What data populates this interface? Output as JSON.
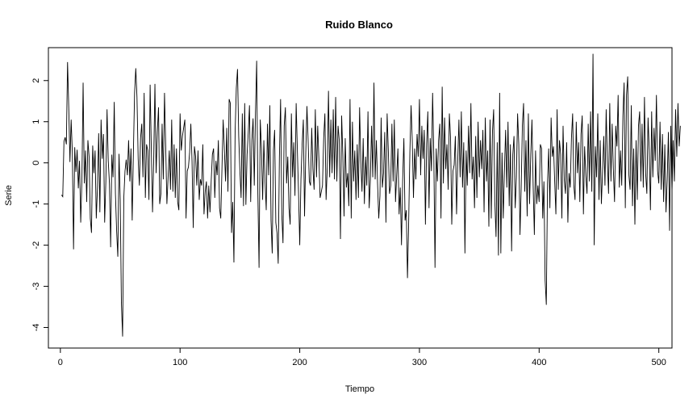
{
  "chart_data": {
    "type": "line",
    "title": "Ruido Blanco",
    "xlabel": "Tiempo",
    "ylabel": "Serie",
    "xlim": [
      -10,
      511
    ],
    "ylim": [
      -4.5,
      2.8
    ],
    "xticks": [
      0,
      100,
      200,
      300,
      400,
      500
    ],
    "xtick_labels": [
      "0",
      "100",
      "200",
      "300",
      "400",
      "500"
    ],
    "yticks": [
      -4,
      -3,
      -2,
      -1,
      0,
      1,
      2
    ],
    "ytick_labels": [
      "-4",
      "-3",
      "-2",
      "-1",
      "0",
      "1",
      "2"
    ],
    "grid": false,
    "box": true,
    "line_color": "#000000",
    "series": [
      {
        "x_start": 1,
        "x_step": 1,
        "values": [
          -0.78,
          -0.82,
          0.52,
          0.62,
          0.45,
          2.45,
          1.35,
          0.02,
          1.05,
          0.25,
          -2.1,
          0.38,
          -0.22,
          0.32,
          -0.62,
          0.05,
          -1.45,
          -0.4,
          1.95,
          -0.5,
          0.3,
          -0.95,
          0.55,
          0.15,
          -1.35,
          -1.7,
          0.42,
          -0.25,
          0.3,
          -1.35,
          -0.6,
          0.72,
          -1.2,
          1.05,
          0.1,
          0.7,
          -1.45,
          -0.45,
          1.3,
          0.05,
          -0.5,
          -2.05,
          0.2,
          -0.35,
          1.48,
          -0.75,
          -1.65,
          -2.28,
          0.22,
          -0.9,
          -3.4,
          -4.22,
          -0.85,
          -0.2,
          0.08,
          -0.3,
          0.55,
          -0.45,
          0.35,
          -1.4,
          0.25,
          1.7,
          2.3,
          1.6,
          0.1,
          -0.55,
          0.6,
          0.95,
          -0.35,
          1.7,
          -0.85,
          0.45,
          0.3,
          -0.9,
          1.9,
          0.3,
          -1.2,
          0.1,
          1.92,
          -0.25,
          0.75,
          1.35,
          -1.0,
          -0.75,
          0.95,
          -0.4,
          1.7,
          0.4,
          -1.0,
          -0.35,
          0.3,
          -0.65,
          1.05,
          -0.7,
          0.45,
          -0.85,
          0.35,
          -0.95,
          -1.15,
          1.2,
          0.3,
          0.65,
          0.85,
          1.05,
          -1.35,
          -0.2,
          -0.1,
          0.25,
          0.95,
          0.05,
          -1.58,
          0.4,
          0.15,
          -0.55,
          0.3,
          -0.9,
          -0.4,
          -0.55,
          0.45,
          -1.25,
          -0.7,
          -0.45,
          -1.35,
          -0.55,
          -1.2,
          -0.45,
          0.2,
          0.35,
          -0.85,
          0.05,
          -0.3,
          0.55,
          -1.1,
          -1.35,
          -0.15,
          1.05,
          0.35,
          -0.45,
          0.85,
          -0.7,
          1.55,
          1.45,
          -1.7,
          -0.95,
          -2.42,
          0.75,
          1.82,
          2.28,
          0.65,
          -0.2,
          -0.85,
          1.2,
          -1.05,
          1.45,
          -1.02,
          0.2,
          0.75,
          1.4,
          -0.95,
          0.55,
          1.08,
          -0.55,
          1.2,
          2.48,
          -0.75,
          -2.55,
          1.05,
          0.35,
          -0.9,
          0.55,
          -0.45,
          -1.15,
          0.95,
          -0.3,
          1.4,
          -1.4,
          -2.2,
          0.3,
          0.8,
          -1.45,
          -1.7,
          -2.45,
          0.15,
          1.55,
          -1.25,
          -1.95,
          0.9,
          1.35,
          -0.5,
          0.15,
          -1.1,
          -1.5,
          1.2,
          -0.35,
          0.5,
          -0.8,
          1.45,
          0.3,
          -0.75,
          -2.0,
          -0.4,
          0.45,
          1.05,
          -1.3,
          0.2,
          1.38,
          0.55,
          -0.45,
          -0.55,
          0.85,
          -0.15,
          -0.65,
          1.3,
          -0.35,
          0.9,
          0.1,
          -0.85,
          -0.7,
          -0.55,
          0.6,
          1.2,
          -0.9,
          -0.1,
          1.75,
          -0.35,
          1.05,
          -0.25,
          1.3,
          -0.4,
          1.6,
          -0.45,
          0.9,
          0.55,
          -1.85,
          1.15,
          0.2,
          -1.3,
          0.6,
          -0.6,
          -0.25,
          -1.05,
          1.55,
          -1.35,
          1.0,
          -0.45,
          0.3,
          -0.9,
          0.45,
          -0.85,
          1.35,
          0.05,
          -0.7,
          0.6,
          -1.0,
          0.15,
          -0.55,
          1.25,
          -1.1,
          -0.4,
          0.9,
          -0.35,
          1.95,
          -0.4,
          0.55,
          -0.5,
          -1.35,
          -0.8,
          1.1,
          -0.6,
          -0.25,
          0.75,
          -1.45,
          1.2,
          0.3,
          -0.75,
          -0.55,
          0.95,
          -0.45,
          1.05,
          -0.95,
          -0.3,
          0.35,
          -1.25,
          -0.6,
          -2.0,
          -0.4,
          0.6,
          -1.4,
          -1.15,
          -2.8,
          -1.45,
          0.25,
          1.4,
          0.55,
          -0.85,
          0.35,
          -0.4,
          0.7,
          0.15,
          1.55,
          -0.3,
          0.9,
          0.1,
          0.8,
          -1.5,
          0.45,
          1.25,
          -1.1,
          0.6,
          -0.2,
          1.7,
          0.2,
          -2.55,
          0.35,
          -0.45,
          0.55,
          0.95,
          -1.35,
          1.85,
          -0.5,
          1.1,
          -0.15,
          0.45,
          -0.65,
          1.2,
          0.6,
          -1.5,
          -0.2,
          -0.05,
          0.65,
          -1.25,
          0.05,
          1.05,
          -0.35,
          1.25,
          -0.6,
          0.5,
          -2.2,
          0.3,
          -0.55,
          0.9,
          -0.25,
          1.45,
          -0.4,
          0.15,
          -1.1,
          0.65,
          -0.85,
          1.0,
          -0.35,
          0.55,
          -0.15,
          0.8,
          -1.2,
          1.1,
          -0.45,
          0.3,
          -1.55,
          1.05,
          -1.35,
          0.75,
          1.3,
          -0.95,
          -1.8,
          0.5,
          -2.25,
          1.7,
          -2.2,
          0.25,
          -1.35,
          -0.2,
          0.8,
          -0.6,
          1.0,
          -1.05,
          0.45,
          -2.15,
          0.2,
          0.65,
          -1.1,
          -0.35,
          1.2,
          0.45,
          -1.75,
          -0.6,
          0.9,
          1.45,
          -0.7,
          0.55,
          -1.3,
          1.2,
          -1.0,
          0.2,
          1.05,
          -0.55,
          -1.75,
          0.3,
          -1.0,
          -0.55,
          -0.95,
          0.45,
          0.35,
          -1.35,
          -0.45,
          -2.85,
          -3.45,
          -0.5,
          0.35,
          -1.1,
          1.1,
          0.15,
          0.4,
          -0.45,
          -1.25,
          1.3,
          -0.65,
          0.55,
          0.2,
          -1.35,
          0.9,
          -0.4,
          -0.75,
          0.5,
          -1.45,
          -0.25,
          -0.6,
          0.6,
          1.2,
          -0.55,
          -0.9,
          1.0,
          -0.25,
          0.5,
          -0.95,
          0.7,
          1.15,
          -1.25,
          0.4,
          -0.3,
          -0.75,
          0.95,
          -0.45,
          1.25,
          -0.7,
          2.65,
          -2.0,
          0.4,
          -0.35,
          1.2,
          -0.9,
          0.55,
          -1.0,
          -0.2,
          0.65,
          -0.55,
          1.3,
          0.05,
          -0.75,
          1.45,
          -0.45,
          0.95,
          -0.15,
          -0.95,
          0.9,
          0.4,
          1.65,
          -0.6,
          0.3,
          -0.55,
          1.15,
          1.95,
          -1.1,
          1.65,
          2.1,
          -0.3,
          -0.65,
          1.4,
          -1.05,
          0.35,
          -1.5,
          0.55,
          -0.9,
          0.9,
          1.25,
          -0.45,
          0.95,
          -0.6,
          1.6,
          -0.25,
          -0.75,
          1.1,
          0.3,
          -1.15,
          1.25,
          -0.35,
          0.85,
          0.05,
          1.65,
          -0.2,
          -0.5,
          1.0,
          -0.65,
          0.7,
          -0.95,
          0.45,
          -1.2,
          -0.4,
          0.75,
          -1.65,
          0.9,
          -0.7,
          0.55,
          -0.45,
          1.3,
          0.15,
          1.45,
          0.4,
          0.9
        ]
      }
    ]
  }
}
